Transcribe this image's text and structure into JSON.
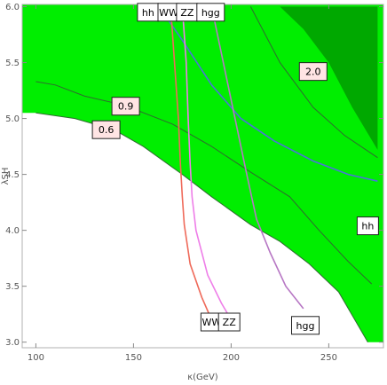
{
  "chart_data": {
    "type": "contour",
    "xlabel": "κ(GeV)",
    "ylabel": "λSH",
    "xlim": [
      93,
      278
    ],
    "ylim": [
      2.95,
      6.02
    ],
    "xticks": [
      100,
      150,
      200,
      250
    ],
    "yticks": [
      3.0,
      3.5,
      4.0,
      4.5,
      5.0,
      5.5,
      6.0
    ],
    "grid": false,
    "colors": {
      "region_fill": "#00ee00",
      "region_dark": "#00a800",
      "contour_line": "#2f6b2f",
      "hh": "#4b74d8",
      "WW": "#ef6a5a",
      "ZZ": "#ee7ee8",
      "hgg": "#b777c4"
    },
    "region": {
      "lower_boundary": [
        [
          100,
          5.05
        ],
        [
          120,
          5.0
        ],
        [
          140,
          4.9
        ],
        [
          155,
          4.75
        ],
        [
          175,
          4.5
        ],
        [
          190,
          4.3
        ],
        [
          210,
          4.05
        ],
        [
          225,
          3.9
        ],
        [
          240,
          3.7
        ],
        [
          255,
          3.45
        ],
        [
          265,
          3.15
        ],
        [
          270,
          3.0
        ],
        [
          275,
          3.0
        ]
      ]
    },
    "dark_region": {
      "label": "2.0",
      "boundary": [
        [
          225,
          6.0
        ],
        [
          237,
          5.8
        ],
        [
          250,
          5.5
        ],
        [
          262,
          5.1
        ],
        [
          275,
          4.72
        ],
        [
          275,
          6.0
        ]
      ]
    },
    "contours": [
      {
        "label": "0.6",
        "points": [
          [
            100,
            5.05
          ],
          [
            120,
            5.0
          ],
          [
            140,
            4.9
          ],
          [
            155,
            4.75
          ],
          [
            175,
            4.5
          ],
          [
            190,
            4.3
          ],
          [
            210,
            4.05
          ],
          [
            225,
            3.9
          ],
          [
            240,
            3.7
          ],
          [
            255,
            3.45
          ],
          [
            265,
            3.15
          ],
          [
            270,
            3.0
          ]
        ]
      },
      {
        "label": "0.9",
        "points": [
          [
            100,
            5.33
          ],
          [
            110,
            5.3
          ],
          [
            125,
            5.2
          ],
          [
            145,
            5.12
          ],
          [
            170,
            4.95
          ],
          [
            190,
            4.75
          ],
          [
            210,
            4.52
          ],
          [
            230,
            4.3
          ],
          [
            245,
            4.0
          ],
          [
            260,
            3.72
          ],
          [
            272,
            3.52
          ]
        ]
      },
      {
        "label": "hh",
        "points": [
          [
            163,
            6.0
          ],
          [
            175,
            5.7
          ],
          [
            190,
            5.3
          ],
          [
            205,
            5.0
          ],
          [
            222,
            4.8
          ],
          [
            242,
            4.62
          ],
          [
            260,
            4.5
          ],
          [
            275,
            4.44
          ]
        ]
      },
      {
        "label": "WW",
        "points": [
          [
            169,
            6.0
          ],
          [
            171,
            5.5
          ],
          [
            173,
            5.0
          ],
          [
            174,
            4.6
          ],
          [
            175,
            4.3
          ],
          [
            176,
            4.05
          ],
          [
            179,
            3.7
          ],
          [
            185,
            3.4
          ],
          [
            190,
            3.2
          ]
        ]
      },
      {
        "label": "ZZ",
        "points": [
          [
            175,
            6.0
          ],
          [
            177,
            5.5
          ],
          [
            178,
            5.0
          ],
          [
            179,
            4.6
          ],
          [
            180,
            4.3
          ],
          [
            182,
            4.0
          ],
          [
            188,
            3.6
          ],
          [
            195,
            3.35
          ],
          [
            200,
            3.2
          ]
        ]
      },
      {
        "label": "hgg",
        "points": [
          [
            190,
            6.0
          ],
          [
            196,
            5.5
          ],
          [
            202,
            5.0
          ],
          [
            208,
            4.5
          ],
          [
            213,
            4.1
          ],
          [
            220,
            3.8
          ],
          [
            228,
            3.5
          ],
          [
            237,
            3.3
          ]
        ]
      },
      {
        "label": "",
        "points": [
          [
            210,
            6.0
          ],
          [
            225,
            5.5
          ],
          [
            242,
            5.1
          ],
          [
            258,
            4.85
          ],
          [
            275,
            4.65
          ]
        ]
      }
    ],
    "annotations": [
      {
        "text": "hh",
        "x": 157.5,
        "y": 5.95,
        "fill": "#ffffff"
      },
      {
        "text": "WW",
        "x": 168,
        "y": 5.95,
        "fill": "#ffffff"
      },
      {
        "text": "ZZ",
        "x": 177.5,
        "y": 5.95,
        "fill": "#ffffff"
      },
      {
        "text": "hgg",
        "x": 189.5,
        "y": 5.95,
        "fill": "#ffffff"
      },
      {
        "text": "2.0",
        "x": 242,
        "y": 5.42,
        "fill": "#ffe4e4"
      },
      {
        "text": "0.9",
        "x": 146,
        "y": 5.11,
        "fill": "#ffe4e4"
      },
      {
        "text": "0.6",
        "x": 136,
        "y": 4.9,
        "fill": "#ffe4e4"
      },
      {
        "text": "hh",
        "x": 270,
        "y": 4.04,
        "fill": "#ffffff"
      },
      {
        "text": "WW",
        "x": 190,
        "y": 3.18,
        "fill": "#ffffff"
      },
      {
        "text": "ZZ",
        "x": 199,
        "y": 3.18,
        "fill": "#ffffff"
      },
      {
        "text": "hgg",
        "x": 238,
        "y": 3.15,
        "fill": "#ffffff"
      }
    ]
  }
}
